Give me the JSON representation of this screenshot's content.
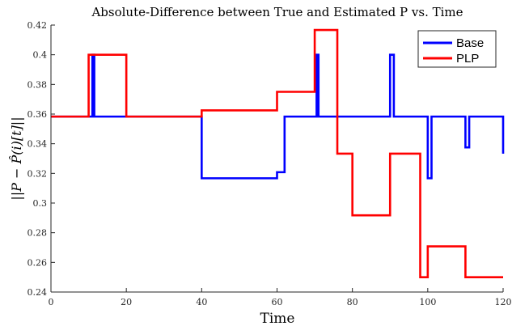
{
  "chart_data": {
    "type": "line",
    "title": "Absolute-Difference between True and Estimated P vs. Time",
    "xlabel": "Time",
    "ylabel": "||P − P̂(i)[t]||",
    "xlim": [
      0,
      120
    ],
    "ylim": [
      0.24,
      0.42
    ],
    "x_ticks": [
      0,
      20,
      40,
      60,
      80,
      100,
      120
    ],
    "y_ticks": [
      0.24,
      0.26,
      0.28,
      0.3,
      0.32,
      0.34,
      0.36,
      0.38,
      0.4,
      0.42
    ],
    "x_tick_labels": [
      "0",
      "20",
      "40",
      "60",
      "80",
      "100",
      "120"
    ],
    "y_tick_labels": [
      "0.24",
      "0.26",
      "0.28",
      "0.3",
      "0.32",
      "0.34",
      "0.36",
      "0.38",
      "0.4",
      "0.42"
    ],
    "grid": false,
    "legend_position": "top-right",
    "step": true,
    "series": [
      {
        "name": "Base",
        "color": "#0000ff",
        "x": [
          1,
          11,
          11.5,
          40,
          60,
          60.5,
          62,
          62.5,
          70.5,
          71,
          71.5,
          90,
          90.5,
          91,
          100,
          101,
          101.5,
          110,
          111,
          111.5,
          120
        ],
        "y": [
          0.3583,
          0.4,
          0.3583,
          0.3167,
          0.3208,
          0.3208,
          0.3583,
          0.3583,
          0.4,
          0.3583,
          0.3583,
          0.4,
          0.4,
          0.3583,
          0.3167,
          0.3583,
          0.3583,
          0.3375,
          0.3583,
          0.3583,
          0.3333
        ]
      },
      {
        "name": "PLP",
        "color": "#ff0000",
        "x": [
          1,
          10,
          20,
          40,
          60,
          70,
          76,
          80,
          90,
          98,
          100,
          110,
          120
        ],
        "y": [
          0.3583,
          0.4,
          0.3583,
          0.3625,
          0.375,
          0.4167,
          0.3333,
          0.2917,
          0.3333,
          0.25,
          0.2708,
          0.25,
          0.25
        ]
      }
    ]
  }
}
